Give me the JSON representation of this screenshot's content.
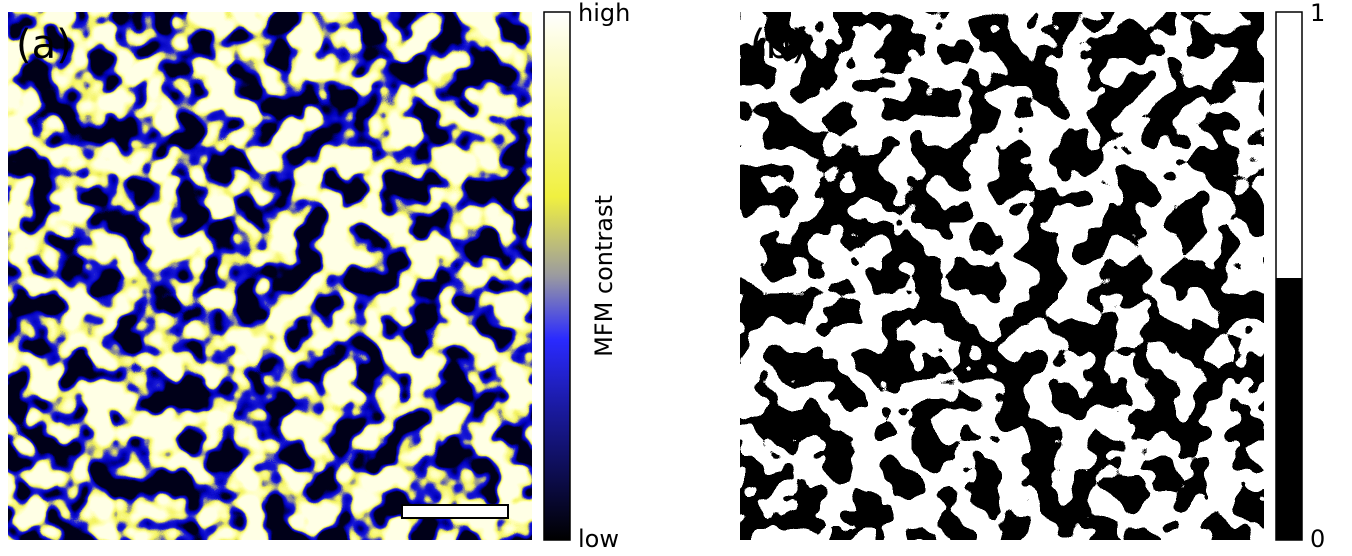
{
  "panels": [
    {
      "label": "(a)",
      "colorbar": {
        "label": "MFM contrast",
        "top": "high",
        "bottom": "low"
      }
    },
    {
      "label": "(b)",
      "colorbar": {
        "top": "1",
        "bottom": "0"
      }
    }
  ]
}
